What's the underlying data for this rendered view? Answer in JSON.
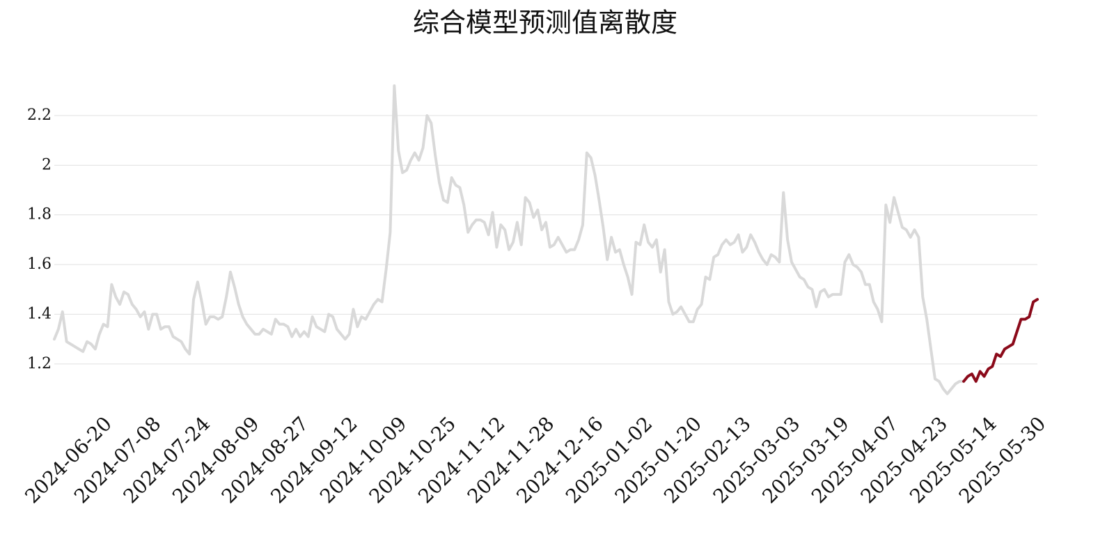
{
  "chart_data": {
    "type": "line",
    "title": "综合模型预测值离散度",
    "categories": [
      null,
      null,
      null,
      null,
      null,
      null,
      null,
      null,
      null,
      null,
      null,
      null,
      "2024-06-20",
      null,
      null,
      null,
      null,
      null,
      null,
      null,
      null,
      null,
      null,
      null,
      "2024-07-08",
      null,
      null,
      null,
      null,
      null,
      null,
      null,
      null,
      null,
      null,
      null,
      "2024-07-24",
      null,
      null,
      null,
      null,
      null,
      null,
      null,
      null,
      null,
      null,
      null,
      "2024-08-09",
      null,
      null,
      null,
      null,
      null,
      null,
      null,
      null,
      null,
      null,
      null,
      "2024-08-27",
      null,
      null,
      null,
      null,
      null,
      null,
      null,
      null,
      null,
      null,
      null,
      "2024-09-12",
      null,
      null,
      null,
      null,
      null,
      null,
      null,
      null,
      null,
      null,
      null,
      "2024-10-09",
      null,
      null,
      null,
      null,
      null,
      null,
      null,
      null,
      null,
      null,
      null,
      "2024-10-25",
      null,
      null,
      null,
      null,
      null,
      null,
      null,
      null,
      null,
      null,
      null,
      "2024-11-12",
      null,
      null,
      null,
      null,
      null,
      null,
      null,
      null,
      null,
      null,
      null,
      "2024-11-28",
      null,
      null,
      null,
      null,
      null,
      null,
      null,
      null,
      null,
      null,
      null,
      "2024-12-16",
      null,
      null,
      null,
      null,
      null,
      null,
      null,
      null,
      null,
      null,
      null,
      "2025-01-02",
      null,
      null,
      null,
      null,
      null,
      null,
      null,
      null,
      null,
      null,
      null,
      "2025-01-20",
      null,
      null,
      null,
      null,
      null,
      null,
      null,
      null,
      null,
      null,
      null,
      "2025-02-13",
      null,
      null,
      null,
      null,
      null,
      null,
      null,
      null,
      null,
      null,
      null,
      "2025-03-03",
      null,
      null,
      null,
      null,
      null,
      null,
      null,
      null,
      null,
      null,
      null,
      "2025-03-19",
      null,
      null,
      null,
      null,
      null,
      null,
      null,
      null,
      null,
      null,
      null,
      "2025-04-07",
      null,
      null,
      null,
      null,
      null,
      null,
      null,
      null,
      null,
      null,
      null,
      "2025-04-23",
      null,
      null,
      null,
      null,
      null,
      null,
      null,
      null,
      null,
      null,
      null,
      "2025-05-14",
      null,
      null,
      null,
      null,
      null,
      null,
      null,
      null,
      null,
      null,
      null,
      "2025-05-30"
    ],
    "series": [
      {
        "color": "#d9d9d9",
        "values": [
          1.3,
          1.34,
          1.41,
          1.29,
          1.28,
          1.27,
          1.26,
          1.25,
          1.29,
          1.28,
          1.26,
          1.32,
          1.36,
          1.35,
          1.52,
          1.47,
          1.44,
          1.49,
          1.48,
          1.44,
          1.42,
          1.39,
          1.41,
          1.34,
          1.4,
          1.4,
          1.34,
          1.35,
          1.35,
          1.31,
          1.3,
          1.29,
          1.26,
          1.24,
          1.46,
          1.53,
          1.45,
          1.36,
          1.39,
          1.39,
          1.38,
          1.39,
          1.47,
          1.57,
          1.51,
          1.44,
          1.39,
          1.36,
          1.34,
          1.32,
          1.32,
          1.34,
          1.33,
          1.32,
          1.38,
          1.36,
          1.36,
          1.35,
          1.31,
          1.34,
          1.31,
          1.33,
          1.31,
          1.39,
          1.35,
          1.34,
          1.33,
          1.4,
          1.39,
          1.34,
          1.32,
          1.3,
          1.32,
          1.42,
          1.35,
          1.39,
          1.38,
          1.41,
          1.44,
          1.46,
          1.45,
          1.58,
          1.73,
          2.32,
          2.06,
          1.97,
          1.98,
          2.02,
          2.05,
          2.02,
          2.07,
          2.2,
          2.17,
          2.04,
          1.93,
          1.86,
          1.85,
          1.95,
          1.92,
          1.91,
          1.84,
          1.73,
          1.76,
          1.78,
          1.78,
          1.77,
          1.72,
          1.81,
          1.67,
          1.76,
          1.74,
          1.66,
          1.69,
          1.77,
          1.68,
          1.87,
          1.85,
          1.79,
          1.82,
          1.74,
          1.77,
          1.67,
          1.68,
          1.71,
          1.68,
          1.65,
          1.66,
          1.66,
          1.7,
          1.76,
          2.05,
          2.03,
          1.96,
          1.86,
          1.75,
          1.62,
          1.71,
          1.65,
          1.66,
          1.6,
          1.55,
          1.48,
          1.69,
          1.68,
          1.76,
          1.69,
          1.67,
          1.7,
          1.57,
          1.66,
          1.45,
          1.4,
          1.41,
          1.43,
          1.4,
          1.37,
          1.37,
          1.42,
          1.44,
          1.55,
          1.54,
          1.63,
          1.64,
          1.68,
          1.7,
          1.68,
          1.69,
          1.72,
          1.65,
          1.67,
          1.72,
          1.69,
          1.65,
          1.62,
          1.6,
          1.64,
          1.63,
          1.61,
          1.89,
          1.7,
          1.61,
          1.58,
          1.55,
          1.54,
          1.51,
          1.5,
          1.43,
          1.49,
          1.5,
          1.47,
          1.48,
          1.48,
          1.48,
          1.61,
          1.64,
          1.6,
          1.59,
          1.57,
          1.52,
          1.52,
          1.45,
          1.42,
          1.37,
          1.84,
          1.77,
          1.87,
          1.81,
          1.75,
          1.74,
          1.71,
          1.74,
          1.71,
          1.47,
          1.38,
          1.26,
          1.14,
          1.13,
          1.1,
          1.08,
          1.1,
          1.12,
          1.13,
          1.13,
          null,
          null,
          null,
          null,
          null,
          null,
          null,
          null,
          null,
          null,
          null,
          null,
          null,
          null,
          null,
          null,
          null,
          null
        ]
      },
      {
        "color": "#8b0a1a",
        "values": [
          null,
          null,
          null,
          null,
          null,
          null,
          null,
          null,
          null,
          null,
          null,
          null,
          null,
          null,
          null,
          null,
          null,
          null,
          null,
          null,
          null,
          null,
          null,
          null,
          null,
          null,
          null,
          null,
          null,
          null,
          null,
          null,
          null,
          null,
          null,
          null,
          null,
          null,
          null,
          null,
          null,
          null,
          null,
          null,
          null,
          null,
          null,
          null,
          null,
          null,
          null,
          null,
          null,
          null,
          null,
          null,
          null,
          null,
          null,
          null,
          null,
          null,
          null,
          null,
          null,
          null,
          null,
          null,
          null,
          null,
          null,
          null,
          null,
          null,
          null,
          null,
          null,
          null,
          null,
          null,
          null,
          null,
          null,
          null,
          null,
          null,
          null,
          null,
          null,
          null,
          null,
          null,
          null,
          null,
          null,
          null,
          null,
          null,
          null,
          null,
          null,
          null,
          null,
          null,
          null,
          null,
          null,
          null,
          null,
          null,
          null,
          null,
          null,
          null,
          null,
          null,
          null,
          null,
          null,
          null,
          null,
          null,
          null,
          null,
          null,
          null,
          null,
          null,
          null,
          null,
          null,
          null,
          null,
          null,
          null,
          null,
          null,
          null,
          null,
          null,
          null,
          null,
          null,
          null,
          null,
          null,
          null,
          null,
          null,
          null,
          null,
          null,
          null,
          null,
          null,
          null,
          null,
          null,
          null,
          null,
          null,
          null,
          null,
          null,
          null,
          null,
          null,
          null,
          null,
          null,
          null,
          null,
          null,
          null,
          null,
          null,
          null,
          null,
          null,
          null,
          null,
          null,
          null,
          null,
          null,
          null,
          null,
          null,
          null,
          null,
          null,
          null,
          null,
          null,
          null,
          null,
          null,
          null,
          null,
          null,
          null,
          null,
          null,
          null,
          null,
          null,
          null,
          null,
          null,
          null,
          null,
          null,
          null,
          null,
          null,
          null,
          null,
          null,
          null,
          null,
          null,
          null,
          1.13,
          1.15,
          1.16,
          1.13,
          1.17,
          1.15,
          1.18,
          1.19,
          1.24,
          1.23,
          1.26,
          1.27,
          1.28,
          1.33,
          1.38,
          1.38,
          1.39,
          1.45,
          1.46
        ]
      }
    ],
    "ylim": [
      1.02,
      2.34
    ],
    "yticks": [
      1.2,
      1.4,
      1.6,
      1.8,
      2,
      2.2
    ],
    "grid": true
  }
}
